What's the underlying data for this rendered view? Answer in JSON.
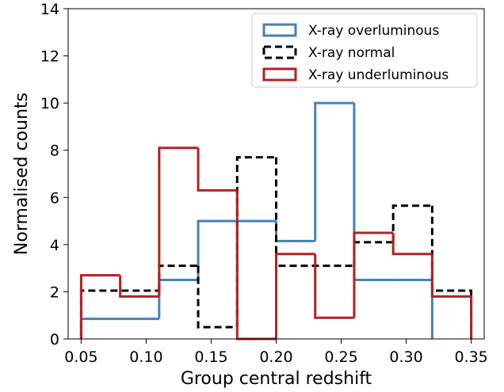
{
  "chart_data": {
    "type": "step-histogram",
    "xlabel": "Group central redshift",
    "ylabel": "Normalised counts",
    "xlim": [
      0.04,
      0.36
    ],
    "ylim": [
      0,
      14
    ],
    "xticks": [
      "0.05",
      "0.10",
      "0.15",
      "0.20",
      "0.25",
      "0.30",
      "0.35"
    ],
    "xtick_values": [
      0.05,
      0.1,
      0.15,
      0.2,
      0.25,
      0.3,
      0.35
    ],
    "yticks": [
      "0",
      "2",
      "4",
      "6",
      "8",
      "10",
      "12",
      "14"
    ],
    "ytick_values": [
      0,
      2,
      4,
      6,
      8,
      10,
      12,
      14
    ],
    "grid": false,
    "legend_position": "top-right",
    "series": [
      {
        "name": "X-ray overluminous",
        "color": "#4682b4",
        "linestyle": "solid",
        "edges": [
          0.05,
          0.11,
          0.14,
          0.17,
          0.2,
          0.23,
          0.26,
          0.29,
          0.32
        ],
        "values": [
          0.85,
          2.5,
          5.0,
          5.0,
          4.15,
          10.0,
          2.5,
          2.5
        ]
      },
      {
        "name": "X-ray normal",
        "color": "#000000",
        "linestyle": "dashed",
        "edges": [
          0.05,
          0.11,
          0.14,
          0.17,
          0.2,
          0.26,
          0.29,
          0.32,
          0.35
        ],
        "values": [
          2.05,
          3.1,
          0.5,
          7.7,
          3.1,
          4.1,
          5.65,
          2.05
        ]
      },
      {
        "name": "X-ray underluminous",
        "color": "#b22222",
        "linestyle": "solid",
        "edges": [
          0.05,
          0.08,
          0.11,
          0.14,
          0.17,
          0.2,
          0.23,
          0.26,
          0.29,
          0.32,
          0.35
        ],
        "values": [
          2.7,
          1.8,
          8.1,
          6.3,
          0,
          3.6,
          0.9,
          4.5,
          3.6,
          1.8
        ]
      }
    ]
  }
}
